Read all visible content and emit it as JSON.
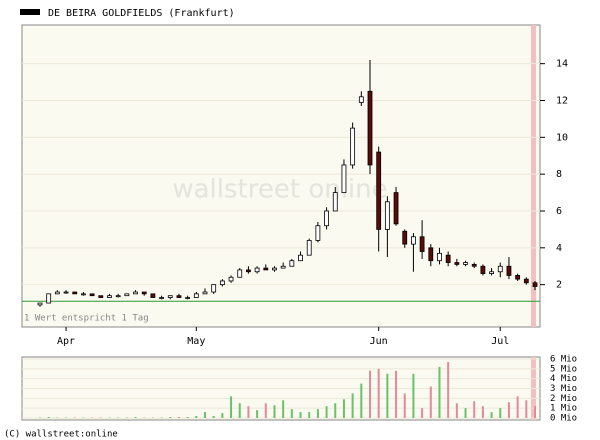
{
  "chart_data": [
    {
      "type": "candlestick",
      "title": "DE BEIRA GOLDFIELDS (Frankfurt)",
      "note": "1 Wert entspricht 1 Tag",
      "watermark": "wallstreet online",
      "categories": [
        null,
        null,
        null,
        null,
        null,
        null,
        null,
        null,
        null,
        null,
        null,
        null,
        null,
        null,
        null,
        null,
        null,
        null,
        null,
        null,
        null,
        null,
        null,
        null,
        null,
        null,
        null,
        null,
        null,
        null,
        null,
        null,
        null,
        null,
        null,
        null,
        null,
        null,
        null,
        null,
        null,
        null,
        null,
        null,
        null,
        null,
        null,
        null,
        null,
        null,
        null,
        null,
        null,
        null,
        null,
        null,
        null,
        null
      ],
      "open": [
        0.9,
        1.0,
        1.5,
        1.6,
        1.6,
        1.5,
        1.5,
        1.4,
        1.3,
        1.4,
        1.4,
        1.5,
        1.6,
        1.5,
        1.3,
        1.3,
        1.4,
        1.3,
        1.3,
        1.5,
        1.6,
        2.0,
        2.2,
        2.4,
        2.8,
        2.7,
        2.9,
        2.8,
        2.9,
        3.0,
        3.3,
        3.6,
        4.4,
        5.2,
        6.0,
        7.0,
        8.5,
        11.9,
        12.5,
        9.2,
        5.0,
        7.0,
        4.9,
        4.2,
        4.6,
        4.0,
        3.3,
        3.6,
        3.2,
        3.1,
        3.1,
        3.0,
        2.6,
        2.7,
        3.0,
        2.5,
        2.3,
        2.1
      ],
      "high": [
        1.0,
        1.5,
        1.7,
        1.7,
        1.6,
        1.6,
        1.5,
        1.4,
        1.5,
        1.5,
        1.5,
        1.7,
        1.6,
        1.5,
        1.4,
        1.4,
        1.5,
        1.4,
        1.6,
        1.8,
        2.0,
        2.3,
        2.5,
        2.9,
        3.0,
        3.0,
        3.1,
        3.0,
        3.2,
        3.4,
        3.8,
        4.5,
        5.4,
        6.2,
        7.3,
        8.8,
        10.8,
        12.5,
        14.2,
        9.5,
        6.8,
        7.3,
        5.0,
        4.8,
        5.5,
        4.2,
        4.0,
        3.8,
        3.4,
        3.3,
        3.2,
        3.1,
        2.9,
        3.2,
        3.5,
        2.6,
        2.4,
        2.2
      ],
      "low": [
        0.8,
        1.0,
        1.5,
        1.5,
        1.5,
        1.4,
        1.4,
        1.3,
        1.3,
        1.3,
        1.4,
        1.5,
        1.4,
        1.3,
        1.2,
        1.2,
        1.3,
        1.2,
        1.3,
        1.5,
        1.5,
        1.9,
        2.1,
        2.4,
        2.6,
        2.6,
        2.8,
        2.7,
        2.9,
        3.0,
        3.3,
        3.6,
        4.3,
        5.0,
        6.0,
        7.0,
        8.3,
        11.7,
        8.0,
        3.8,
        3.5,
        5.2,
        4.0,
        2.7,
        3.4,
        3.0,
        3.1,
        3.0,
        3.0,
        3.0,
        2.9,
        2.5,
        2.5,
        2.4,
        2.3,
        2.2,
        2.0,
        1.7
      ],
      "close": [
        1.0,
        1.5,
        1.6,
        1.6,
        1.5,
        1.5,
        1.4,
        1.3,
        1.4,
        1.4,
        1.5,
        1.6,
        1.5,
        1.3,
        1.3,
        1.4,
        1.3,
        1.3,
        1.5,
        1.6,
        2.0,
        2.2,
        2.4,
        2.8,
        2.7,
        2.9,
        2.8,
        2.9,
        3.0,
        3.3,
        3.6,
        4.4,
        5.2,
        6.0,
        7.0,
        8.5,
        10.5,
        12.2,
        8.5,
        5.0,
        6.5,
        5.3,
        4.2,
        4.6,
        3.8,
        3.3,
        3.7,
        3.2,
        3.1,
        3.2,
        3.0,
        2.6,
        2.7,
        3.0,
        2.5,
        2.3,
        2.1,
        1.9
      ],
      "reference_line": 1.1,
      "ylim": [
        -0.3,
        16.1
      ],
      "yticks": [
        2,
        4,
        6,
        8,
        10,
        12,
        14
      ],
      "xticks": [
        {
          "value": 3,
          "label": "Apr"
        },
        {
          "value": 18,
          "label": "May"
        },
        {
          "value": 39,
          "label": "Jun"
        },
        {
          "value": 53,
          "label": "Jul"
        }
      ]
    },
    {
      "type": "volume",
      "copyright": "(C) wallstreet:online",
      "values": [
        0.05,
        0.1,
        0.05,
        0.05,
        0.05,
        0.05,
        0.05,
        0.05,
        0.05,
        0.05,
        0.05,
        0.1,
        0.05,
        0.05,
        0.05,
        0.1,
        0.1,
        0.1,
        0.2,
        0.6,
        0.2,
        0.5,
        2.2,
        1.5,
        1.2,
        0.8,
        1.5,
        1.3,
        1.8,
        0.9,
        0.6,
        0.6,
        0.9,
        1.2,
        1.5,
        1.9,
        2.5,
        3.5,
        4.8,
        5.0,
        4.5,
        4.8,
        2.5,
        4.5,
        1.0,
        3.2,
        5.2,
        5.7,
        1.5,
        1.0,
        1.7,
        1.2,
        0.6,
        1.0,
        1.6,
        2.2,
        1.8,
        1.2
      ],
      "ylim": [
        0,
        6
      ],
      "yticks": [
        {
          "value": 0,
          "label": "0 Mio"
        },
        {
          "value": 1,
          "label": "1 Mio"
        },
        {
          "value": 2,
          "label": "2 Mio"
        },
        {
          "value": 3,
          "label": "3 Mio"
        },
        {
          "value": 4,
          "label": "4 Mio"
        },
        {
          "value": 5,
          "label": "5 Mio"
        },
        {
          "value": 6,
          "label": "6 Mio"
        }
      ]
    }
  ]
}
